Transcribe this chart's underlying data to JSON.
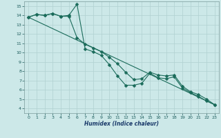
{
  "xlabel": "Humidex (Indice chaleur)",
  "xlim": [
    -0.5,
    23.5
  ],
  "ylim": [
    3.5,
    15.5
  ],
  "xticks": [
    0,
    1,
    2,
    3,
    4,
    5,
    6,
    7,
    8,
    9,
    10,
    11,
    12,
    13,
    14,
    15,
    16,
    17,
    18,
    19,
    20,
    21,
    22,
    23
  ],
  "yticks": [
    4,
    5,
    6,
    7,
    8,
    9,
    10,
    11,
    12,
    13,
    14,
    15
  ],
  "background_color": "#cce8e8",
  "grid_color": "#b0d0d0",
  "line_color": "#1a6b5a",
  "line1_x": [
    0,
    1,
    2,
    3,
    4,
    5,
    6,
    7,
    8,
    9,
    10,
    11,
    12,
    13,
    14,
    15,
    16,
    17,
    18,
    19,
    20,
    21,
    22,
    23
  ],
  "line1_y": [
    13.8,
    14.1,
    14.0,
    14.2,
    13.9,
    14.0,
    15.2,
    10.4,
    10.1,
    9.7,
    8.7,
    7.5,
    6.5,
    6.5,
    6.7,
    7.8,
    7.3,
    7.2,
    7.4,
    6.2,
    5.7,
    5.3,
    4.8,
    4.4
  ],
  "line2_x": [
    0,
    1,
    2,
    3,
    4,
    5,
    6,
    7,
    8,
    9,
    10,
    11,
    12,
    13,
    14,
    15,
    16,
    17,
    18,
    19,
    20,
    21,
    22,
    23
  ],
  "line2_y": [
    13.8,
    14.1,
    14.0,
    14.2,
    13.9,
    13.9,
    11.6,
    10.9,
    10.5,
    10.1,
    9.5,
    8.8,
    7.9,
    7.1,
    7.2,
    7.9,
    7.6,
    7.5,
    7.6,
    6.4,
    5.8,
    5.5,
    5.0,
    4.4
  ],
  "line3_x": [
    0,
    23
  ],
  "line3_y": [
    13.8,
    4.4
  ],
  "marker": "D",
  "marker_size": 2.5,
  "line_width": 0.8
}
